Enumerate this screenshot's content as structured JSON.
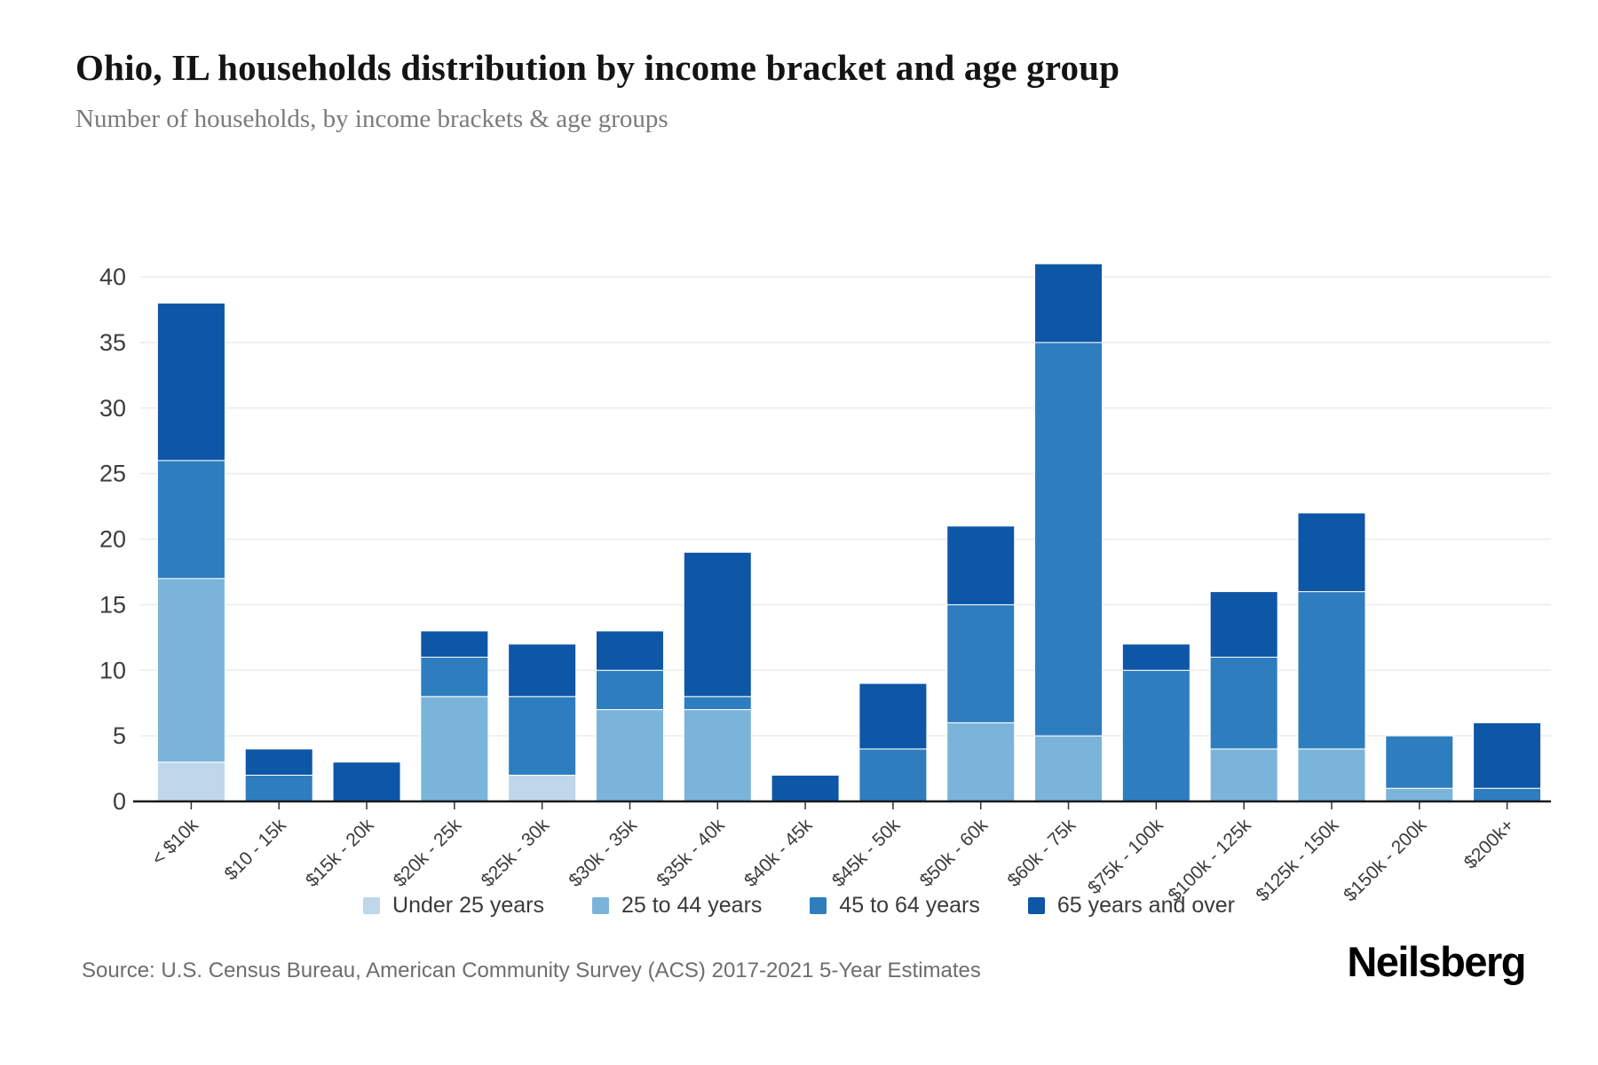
{
  "header": {
    "title": "Ohio, IL households distribution by income bracket and age group",
    "subtitle": "Number of households, by income brackets & age groups"
  },
  "source_note": "Source: U.S. Census Bureau, American Community Survey (ACS) 2017-2021 5-Year Estimates",
  "brand": {
    "logo_text": "Neilsberg"
  },
  "colors": {
    "under_25": "#bed7e9",
    "age_25_44": "#7ab4da",
    "age_45_64": "#2e7dbf",
    "age_65_over": "#0e56a6",
    "gridline": "#ececec",
    "axis_line": "#1a1a1a",
    "tick_text": "#3d3d3d",
    "background": "#ffffff"
  },
  "chart_data": {
    "type": "bar",
    "stacked": true,
    "title": "Ohio, IL households distribution by income bracket and age group",
    "subtitle": "Number of households, by income brackets & age groups",
    "xlabel": "",
    "ylabel": "",
    "ylim": [
      0,
      40
    ],
    "yticks": [
      0,
      5,
      10,
      15,
      20,
      25,
      30,
      35,
      40
    ],
    "grid": true,
    "legend_position": "bottom",
    "categories": [
      "< $10k",
      "$10 - 15k",
      "$15k - 20k",
      "$20k - 25k",
      "$25k - 30k",
      "$30k - 35k",
      "$35k - 40k",
      "$40k - 45k",
      "$45k - 50k",
      "$50k - 60k",
      "$60k - 75k",
      "$75k - 100k",
      "$100k - 125k",
      "$125k - 150k",
      "$150k - 200k",
      "$200k+"
    ],
    "series": [
      {
        "name": "Under 25 years",
        "color": "#bed7e9",
        "values": [
          3,
          0,
          0,
          0,
          2,
          0,
          0,
          0,
          0,
          0,
          0,
          0,
          0,
          0,
          0,
          0
        ]
      },
      {
        "name": "25 to 44 years",
        "color": "#7ab4da",
        "values": [
          14,
          0,
          0,
          8,
          0,
          7,
          7,
          0,
          0,
          6,
          5,
          0,
          4,
          4,
          1,
          0
        ]
      },
      {
        "name": "45 to 64 years",
        "color": "#2e7dbf",
        "values": [
          9,
          2,
          0,
          3,
          6,
          3,
          1,
          0,
          4,
          9,
          30,
          10,
          7,
          12,
          4,
          1
        ]
      },
      {
        "name": "65 years and over",
        "color": "#0e56a6",
        "values": [
          12,
          2,
          3,
          2,
          4,
          3,
          11,
          2,
          5,
          6,
          6,
          2,
          5,
          6,
          0,
          5
        ]
      }
    ],
    "totals": [
      38,
      4,
      3,
      13,
      12,
      13,
      19,
      2,
      9,
      21,
      41,
      12,
      16,
      22,
      5,
      6
    ]
  }
}
